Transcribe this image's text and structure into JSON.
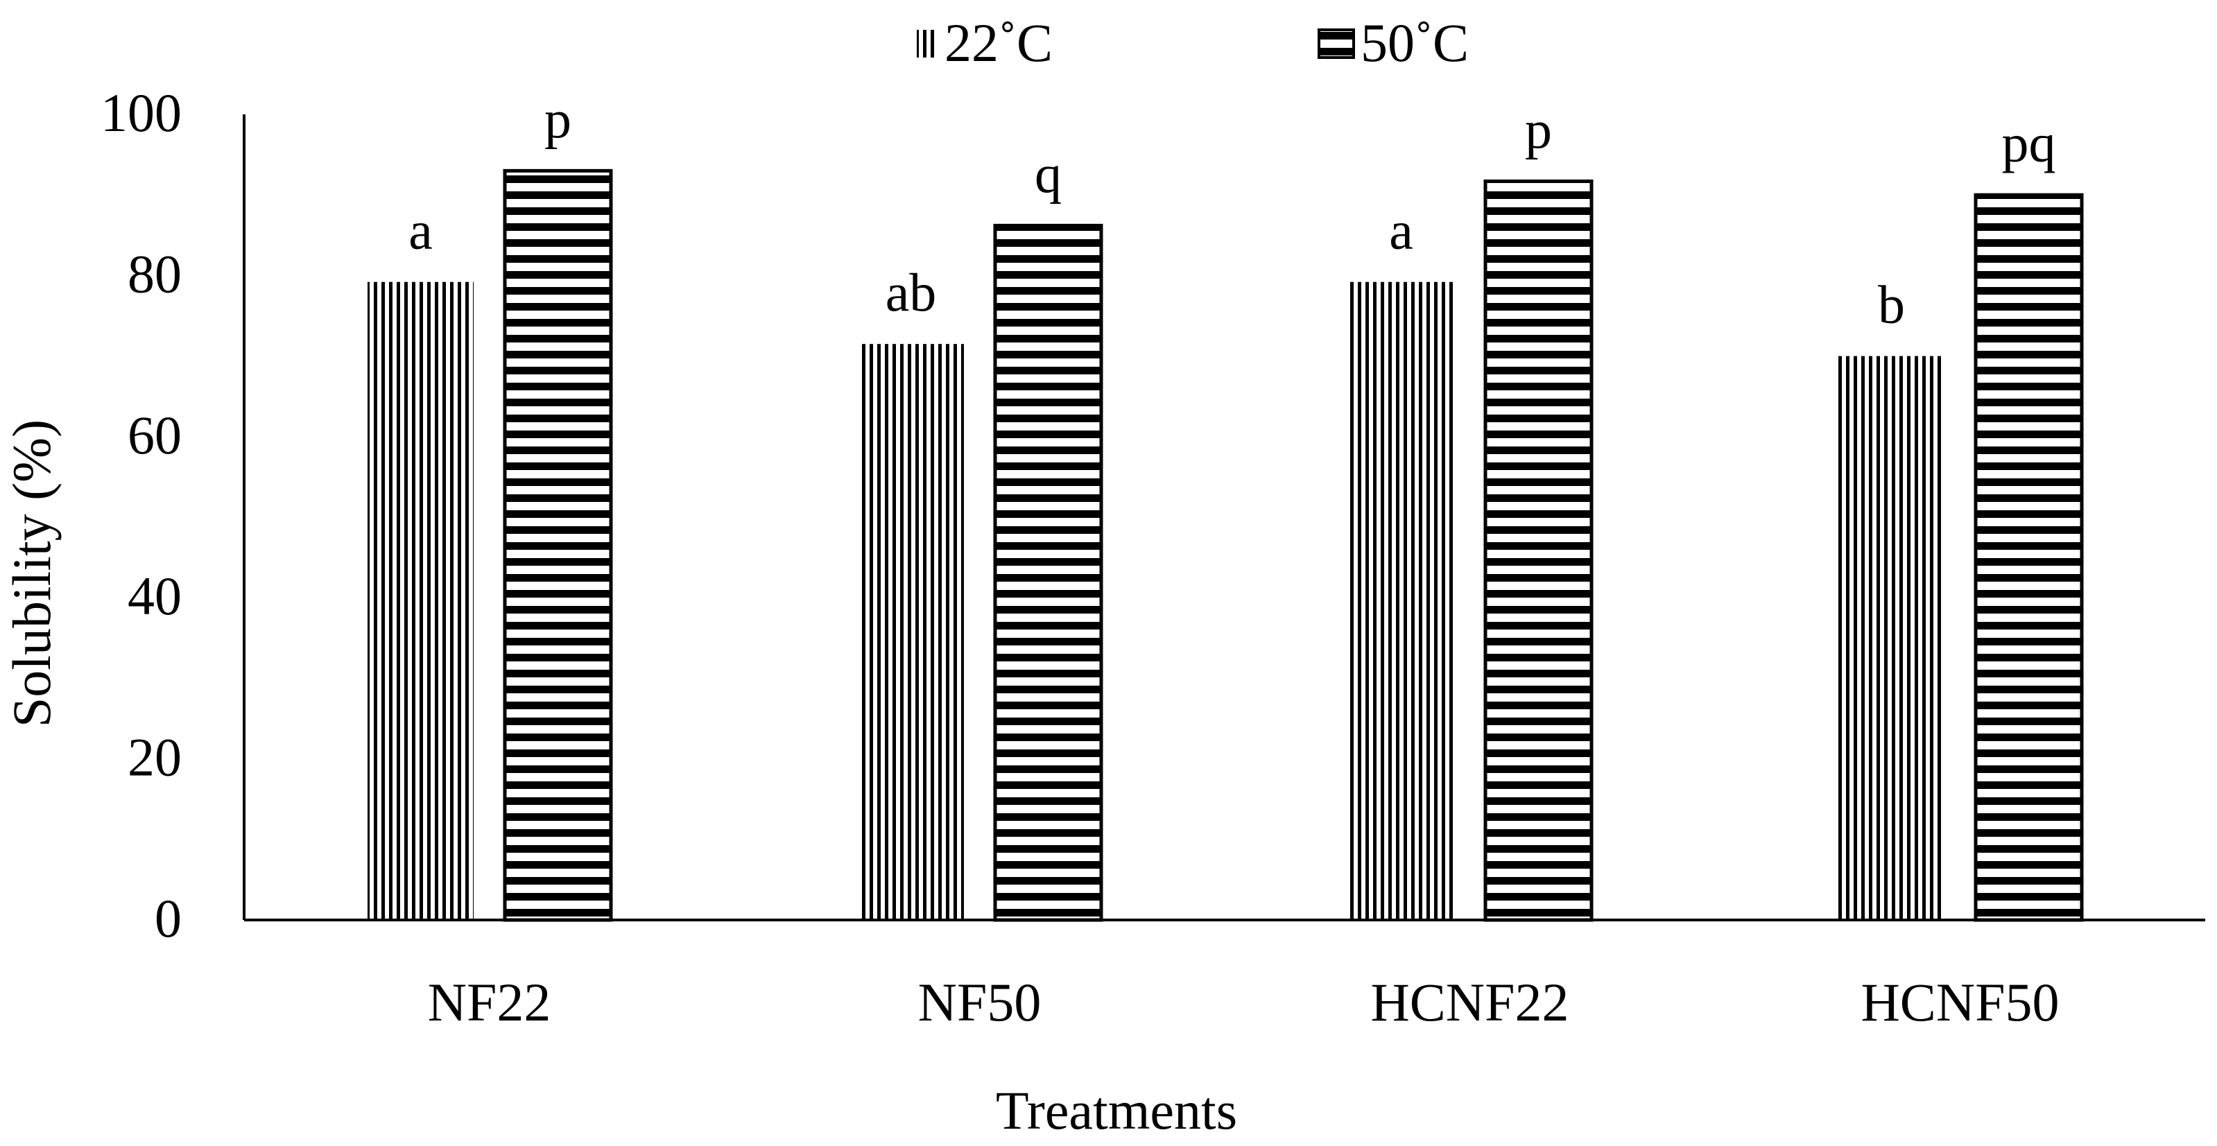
{
  "chart_data": {
    "type": "bar",
    "title": "",
    "xlabel": "Treatments",
    "ylabel": "Solubility (%)",
    "categories": [
      "NF22",
      "NF50",
      "HCNF22",
      "HCNF50"
    ],
    "ylim": [
      0,
      100
    ],
    "yticks": [
      0,
      20,
      40,
      60,
      80,
      100
    ],
    "grid": false,
    "legend_position": "top-center",
    "series": [
      {
        "name": "22˚C",
        "pattern": "vertical-stripes",
        "values": [
          79.2,
          71.5,
          79.2,
          70.0
        ],
        "labels": [
          "a",
          "ab",
          "a",
          "b"
        ]
      },
      {
        "name": "50˚C",
        "pattern": "horizontal-stripes",
        "values": [
          93.0,
          86.2,
          91.7,
          90.0
        ],
        "labels": [
          "p",
          "q",
          "p",
          "pq"
        ]
      }
    ],
    "colors": {
      "stroke": "#000000",
      "background": "#ffffff"
    }
  }
}
